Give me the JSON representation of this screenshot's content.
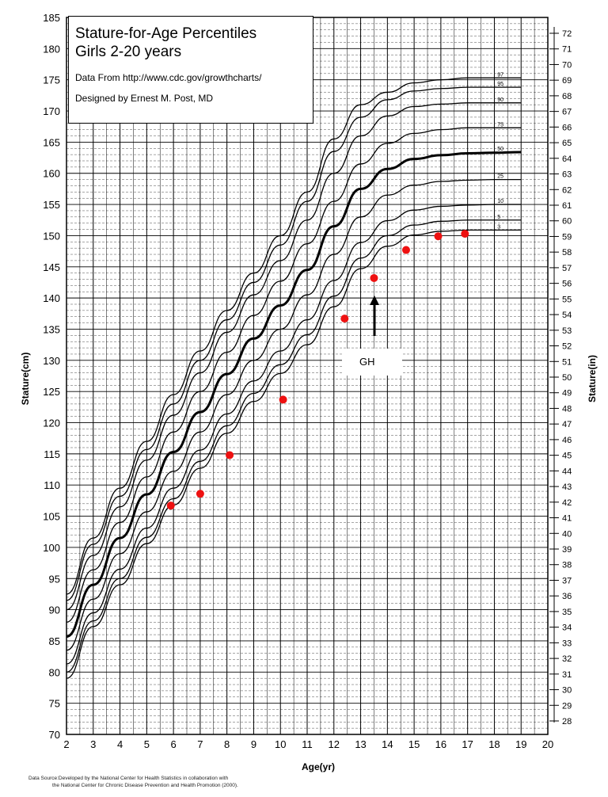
{
  "chart_data": {
    "type": "line",
    "title": "Stature-for-Age Percentiles",
    "subtitle": "Girls 2-20 years",
    "notes": [
      "Data From http://www.cdc.gov/growthcharts/",
      "Designed by Ernest M. Post, MD"
    ],
    "xlabel": "Age(yr)",
    "ylabel": "Stature(cm)",
    "ylabel_right": "Stature(in)",
    "xlim": [
      2,
      20
    ],
    "ylim": [
      70,
      185
    ],
    "ylim_right": [
      28,
      72
    ],
    "x_ticks": [
      2,
      3,
      4,
      5,
      6,
      7,
      8,
      9,
      10,
      11,
      12,
      13,
      14,
      15,
      16,
      17,
      18,
      19,
      20
    ],
    "y_ticks": [
      70,
      75,
      80,
      85,
      90,
      95,
      100,
      105,
      110,
      115,
      120,
      125,
      130,
      135,
      140,
      145,
      150,
      155,
      160,
      165,
      170,
      175,
      180,
      185
    ],
    "y_ticks_right": [
      28,
      29,
      30,
      31,
      32,
      33,
      34,
      35,
      36,
      37,
      38,
      39,
      40,
      41,
      42,
      43,
      44,
      45,
      46,
      47,
      48,
      49,
      50,
      51,
      52,
      53,
      54,
      55,
      56,
      57,
      58,
      59,
      60,
      61,
      62,
      63,
      64,
      65,
      66,
      67,
      68,
      69,
      70,
      71,
      72
    ],
    "grid": true,
    "x": [
      2,
      3,
      4,
      5,
      6,
      7,
      8,
      9,
      10,
      11,
      12,
      13,
      14,
      15,
      16,
      17,
      18,
      19
    ],
    "series": [
      {
        "name": "97",
        "values": [
          92.5,
          101.5,
          109.5,
          117.0,
          124.5,
          131.5,
          138.0,
          144.0,
          150.0,
          157.0,
          165.5,
          171.0,
          173.0,
          174.5,
          175.0,
          175.3,
          175.3,
          175.3
        ]
      },
      {
        "name": "95",
        "values": [
          91.5,
          100.5,
          108.2,
          115.7,
          123.0,
          130.0,
          136.5,
          142.5,
          148.5,
          155.5,
          163.5,
          169.0,
          171.8,
          173.2,
          173.6,
          173.8,
          173.8,
          173.8
        ]
      },
      {
        "name": "90",
        "values": [
          90.0,
          98.7,
          106.5,
          114.0,
          121.2,
          128.0,
          134.5,
          140.5,
          146.0,
          152.5,
          160.0,
          166.0,
          169.2,
          170.7,
          171.1,
          171.3,
          171.3,
          171.3
        ]
      },
      {
        "name": "75",
        "values": [
          88.0,
          96.4,
          104.0,
          111.3,
          118.5,
          125.0,
          131.3,
          137.2,
          142.7,
          148.7,
          155.5,
          161.5,
          164.8,
          166.4,
          167.0,
          167.3,
          167.3,
          167.3
        ]
      },
      {
        "name": "50",
        "values": [
          85.7,
          94.0,
          101.5,
          108.5,
          115.3,
          121.7,
          127.8,
          133.5,
          138.8,
          144.5,
          151.5,
          157.5,
          160.7,
          162.3,
          162.9,
          163.2,
          163.3,
          163.4
        ]
      },
      {
        "name": "25",
        "values": [
          83.5,
          91.7,
          99.0,
          105.7,
          112.2,
          118.5,
          124.5,
          130.0,
          135.0,
          140.5,
          147.0,
          153.0,
          156.5,
          158.1,
          158.7,
          158.9,
          159.0,
          159.0
        ]
      },
      {
        "name": "10",
        "values": [
          81.3,
          89.5,
          96.5,
          103.1,
          109.5,
          115.6,
          121.4,
          126.7,
          131.5,
          136.5,
          142.8,
          148.9,
          152.4,
          154.1,
          154.7,
          154.9,
          155.0,
          155.0
        ]
      },
      {
        "name": "5",
        "values": [
          80.0,
          88.2,
          95.0,
          101.6,
          107.8,
          113.8,
          119.5,
          124.7,
          129.3,
          134.1,
          140.3,
          146.4,
          150.0,
          151.7,
          152.3,
          152.5,
          152.5,
          152.5
        ]
      },
      {
        "name": "3",
        "values": [
          79.0,
          87.3,
          94.0,
          100.6,
          106.8,
          112.7,
          118.3,
          123.4,
          127.9,
          132.5,
          138.6,
          144.7,
          148.3,
          150.1,
          150.7,
          150.9,
          150.9,
          150.9
        ]
      }
    ],
    "patient_points": {
      "x": [
        5.9,
        7.0,
        8.1,
        10.1,
        12.4,
        13.5,
        14.7,
        15.9,
        16.9
      ],
      "y": [
        106.7,
        108.6,
        114.8,
        123.7,
        136.7,
        143.2,
        147.7,
        149.9,
        150.3
      ],
      "color": "#ee1111"
    },
    "annotation": {
      "text": "GH",
      "x": 13.5
    }
  },
  "source_lines": [
    "Data Source:Developed by the National Center for Health Statistics in collaboration with",
    "the National Center for Chronic Disease Prevention and Health Promotion (2000)."
  ],
  "colors": {
    "curve": "#000000",
    "point": "#ee1111",
    "grid": "#000000"
  }
}
